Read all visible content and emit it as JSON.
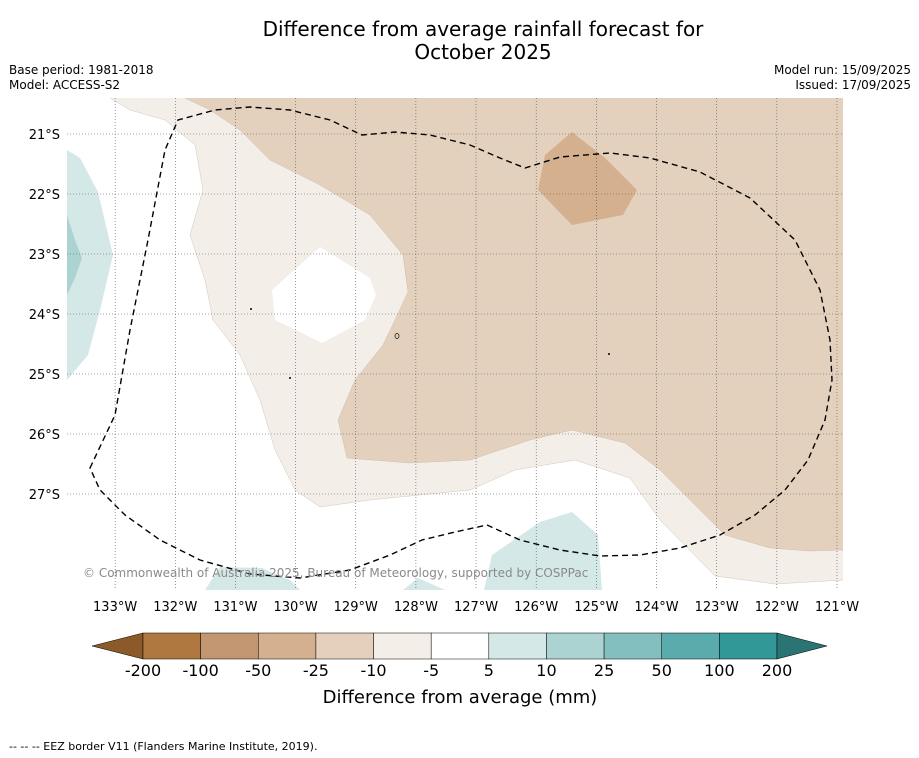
{
  "header": {
    "title_line1": "Difference from average rainfall forecast for",
    "title_line2": "October 2025",
    "base_period": "Base period: 1981-2018",
    "model": "Model: ACCESS-S2",
    "model_run": "Model run: 15/09/2025",
    "issued": "Issued: 17/09/2025"
  },
  "map": {
    "copyright": "© Commonwealth of Australia 2025, Bureau of Meteorology, supported by COSPPac",
    "footnote": "-- -- -- EEZ border V11 (Flanders Marine Institute, 2019)."
  },
  "chart_data": {
    "type": "heatmap",
    "title": "Difference from average rainfall forecast for October 2025",
    "x_ticks": [
      "133°W",
      "132°W",
      "131°W",
      "130°W",
      "129°W",
      "128°W",
      "127°W",
      "126°W",
      "125°W",
      "124°W",
      "123°W",
      "122°W",
      "121°W"
    ],
    "y_ticks": [
      "21°S",
      "22°S",
      "23°S",
      "24°S",
      "25°S",
      "26°S",
      "27°S"
    ],
    "xlim": [
      -133.8,
      -120.9
    ],
    "ylim": [
      -28.6,
      -20.4
    ],
    "grid": true,
    "colorbar": {
      "label": "Difference from average (mm)",
      "ticks": [
        "-200",
        "-100",
        "-50",
        "-25",
        "-10",
        "-5",
        "5",
        "10",
        "25",
        "50",
        "100",
        "200"
      ],
      "colors": [
        "#8c5a28",
        "#ae7840",
        "#c29670",
        "#d4b08f",
        "#e4d0bd",
        "#f4eee9",
        "#ffffff",
        "#d4e8e7",
        "#aad3d2",
        "#82bfbe",
        "#5aabab",
        "#329897",
        "#2a7574"
      ],
      "extend": "both"
    },
    "regions": [
      {
        "category": "-5 to -10",
        "description": "light brown band across central and eastern area"
      },
      {
        "category": "-10 to -25",
        "description": "tan area covering the north-east and east"
      },
      {
        "category": "-25 to -50",
        "description": "darker tan patch near 125°W 22°S"
      },
      {
        "category": "5 to 10",
        "description": "light teal along western edge and southern border"
      },
      {
        "category": "10 to 25",
        "description": "small teal patch at western edge near 23°S"
      }
    ]
  }
}
